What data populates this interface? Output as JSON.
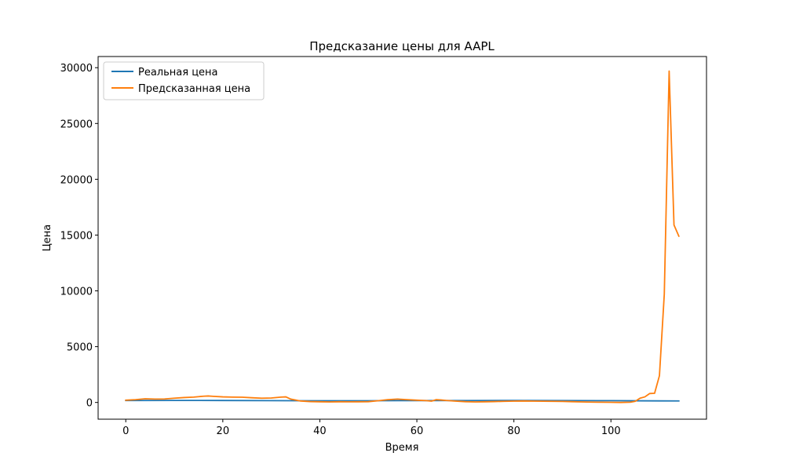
{
  "chart_data": {
    "type": "line",
    "title": "Предсказание цены для AAPL",
    "xlabel": "Время",
    "ylabel": "Цена",
    "xlim": [
      -5.7,
      119.7
    ],
    "ylim": [
      -1500,
      31000
    ],
    "xticks": [
      0,
      20,
      40,
      60,
      80,
      100
    ],
    "yticks": [
      0,
      5000,
      10000,
      15000,
      20000,
      25000,
      30000
    ],
    "grid": false,
    "legend_position": "top-left",
    "series": [
      {
        "name": "Реальная цена",
        "color": "#1f77b4",
        "x": [
          0,
          10,
          20,
          30,
          40,
          50,
          60,
          70,
          80,
          90,
          100,
          105,
          110,
          114
        ],
        "y": [
          170,
          180,
          175,
          160,
          150,
          155,
          165,
          170,
          175,
          170,
          160,
          150,
          140,
          135
        ]
      },
      {
        "name": "Предсказанная цена",
        "color": "#ff7f0e",
        "x": [
          0,
          2,
          4,
          6,
          8,
          10,
          12,
          14,
          16,
          17,
          18,
          20,
          22,
          24,
          26,
          28,
          30,
          32,
          33,
          34,
          36,
          38,
          40,
          42,
          44,
          46,
          48,
          50,
          52,
          54,
          56,
          58,
          60,
          62,
          63,
          64,
          65,
          66,
          68,
          70,
          72,
          74,
          76,
          78,
          80,
          82,
          84,
          86,
          88,
          90,
          92,
          94,
          96,
          98,
          100,
          102,
          104,
          105,
          106,
          107,
          108,
          109,
          110,
          111,
          112,
          113,
          114
        ],
        "y": [
          200,
          250,
          330,
          300,
          310,
          380,
          440,
          480,
          560,
          580,
          550,
          500,
          480,
          470,
          420,
          380,
          400,
          480,
          500,
          300,
          130,
          80,
          60,
          50,
          60,
          55,
          60,
          70,
          150,
          250,
          300,
          250,
          200,
          160,
          120,
          250,
          220,
          180,
          120,
          70,
          50,
          60,
          80,
          100,
          120,
          130,
          120,
          110,
          100,
          90,
          70,
          50,
          30,
          20,
          10,
          0,
          20,
          100,
          380,
          500,
          800,
          820,
          2400,
          9700,
          29700,
          15900,
          14900
        ]
      }
    ]
  }
}
